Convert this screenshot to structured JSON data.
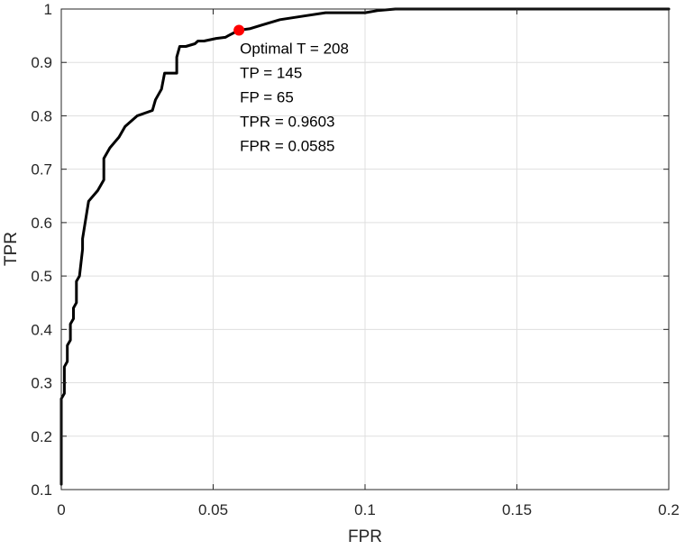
{
  "chart_data": {
    "type": "line",
    "title": "",
    "xlabel": "FPR",
    "ylabel": "TPR",
    "xlim": [
      0,
      0.2
    ],
    "ylim": [
      0.1,
      1
    ],
    "grid": true,
    "x_ticks": [
      0,
      0.05,
      0.1,
      0.15,
      0.2
    ],
    "x_tick_labels": [
      "0",
      "0.05",
      "0.1",
      "0.15",
      "0.2"
    ],
    "y_ticks": [
      0.1,
      0.2,
      0.3,
      0.4,
      0.5,
      0.6,
      0.7,
      0.8,
      0.9,
      1
    ],
    "y_tick_labels": [
      "0.1",
      "0.2",
      "0.3",
      "0.4",
      "0.5",
      "0.6",
      "0.7",
      "0.8",
      "0.9",
      "1"
    ],
    "series": [
      {
        "color": "#000000",
        "x": [
          0,
          0,
          0.001,
          0.001,
          0.002,
          0.002,
          0.003,
          0.003,
          0.004,
          0.004,
          0.005,
          0.005,
          0.006,
          0.007,
          0.007,
          0.009,
          0.012,
          0.014,
          0.014,
          0.016,
          0.019,
          0.021,
          0.025,
          0.03,
          0.031,
          0.033,
          0.034,
          0.036,
          0.038,
          0.038,
          0.039,
          0.04,
          0.041,
          0.044,
          0.045,
          0.047,
          0.051,
          0.054,
          0.055,
          0.0585,
          0.062,
          0.066,
          0.072,
          0.08,
          0.087,
          0.094,
          0.1,
          0.104,
          0.11,
          0.13,
          0.2
        ],
        "y": [
          0.11,
          0.27,
          0.28,
          0.33,
          0.34,
          0.37,
          0.38,
          0.41,
          0.42,
          0.44,
          0.45,
          0.49,
          0.5,
          0.55,
          0.57,
          0.64,
          0.66,
          0.68,
          0.72,
          0.74,
          0.76,
          0.78,
          0.8,
          0.81,
          0.83,
          0.85,
          0.88,
          0.88,
          0.88,
          0.91,
          0.93,
          0.93,
          0.93,
          0.935,
          0.94,
          0.94,
          0.945,
          0.947,
          0.95,
          0.9603,
          0.963,
          0.97,
          0.98,
          0.987,
          0.993,
          0.993,
          0.993,
          0.997,
          1.0,
          1.0,
          1.0
        ]
      }
    ],
    "marker": {
      "x": 0.0585,
      "y": 0.9603,
      "color": "#ff0000"
    },
    "annotation_lines": [
      "Optimal T = 208",
      "TP = 145",
      "FP = 65",
      "TPR = 0.9603",
      "FPR = 0.0585"
    ]
  }
}
